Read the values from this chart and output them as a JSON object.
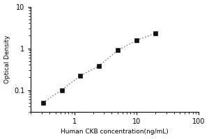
{
  "title": "",
  "xlabel": "Human CKB concentration(ng/mL)",
  "ylabel": "Optical Density",
  "x_data": [
    0.313,
    0.625,
    1.25,
    2.5,
    5,
    10,
    20
  ],
  "y_data": [
    0.05,
    0.1,
    0.22,
    0.38,
    0.9,
    1.55,
    2.3
  ],
  "xlim_log": [
    0.2,
    100
  ],
  "ylim_log": [
    0.03,
    10
  ],
  "line_color": "#666666",
  "marker_color": "#111111",
  "background_color": "#ffffff",
  "marker": "s",
  "marker_size": 4,
  "x_ticks": [
    1,
    10,
    100
  ],
  "x_tick_labels": [
    "1",
    "10",
    "100"
  ],
  "y_ticks": [
    0.1,
    1,
    10
  ],
  "y_tick_labels": [
    "0.1",
    "1",
    "10"
  ],
  "tick_label_fontsize": 7,
  "axis_label_fontsize": 6.5
}
